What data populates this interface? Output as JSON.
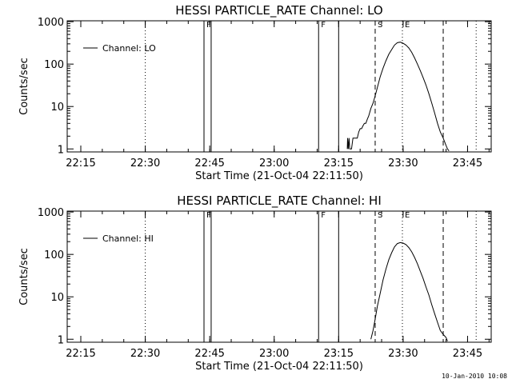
{
  "chart_data": [
    {
      "type": "line",
      "title": "HESSI PARTICLE_RATE Channel: LO",
      "xlabel": "Start Time (21-Oct-04 22:11:50)",
      "ylabel": "Counts/sec",
      "y_scale": "log",
      "ylim": [
        0.85,
        1050
      ],
      "xlim": [
        "22:11:50",
        "23:50:30"
      ],
      "x_ticks": [
        "22:15",
        "22:30",
        "22:45",
        "23:00",
        "23:15",
        "23:30",
        "23:45"
      ],
      "y_ticks": [
        "1",
        "10",
        "100",
        "1000"
      ],
      "legend": {
        "placement": "top-left",
        "entries": [
          "Channel: LO"
        ]
      },
      "grid": false,
      "markers": {
        "solid": [
          {
            "time": "22:43:40",
            "label": "F"
          },
          {
            "time": "22:45:20",
            "label": ""
          },
          {
            "time": "23:10:20",
            "label": "F"
          },
          {
            "time": "23:15:00",
            "label": ""
          }
        ],
        "dashed": [
          {
            "time": "23:23:30",
            "label": "S"
          },
          {
            "time": "23:39:20",
            "label": ""
          }
        ],
        "dotted": [
          {
            "time": "22:30:00",
            "label": ""
          },
          {
            "time": "23:29:50",
            "label": "E"
          },
          {
            "time": "23:47:00",
            "label": ""
          }
        ]
      },
      "series": [
        {
          "name": "Channel: LO",
          "x": [
            "23:17:00",
            "23:17:05",
            "23:17:15",
            "23:17:25",
            "23:17:35",
            "23:18:00",
            "23:18:20",
            "23:18:40",
            "23:19:00",
            "23:19:20",
            "23:19:40",
            "23:20:00",
            "23:20:20",
            "23:20:40",
            "23:21:00",
            "23:21:20",
            "23:21:40",
            "23:22:00",
            "23:22:30",
            "23:23:00",
            "23:23:30",
            "23:24:00",
            "23:24:40",
            "23:25:20",
            "23:26:00",
            "23:26:40",
            "23:27:20",
            "23:28:00",
            "23:28:40",
            "23:29:20",
            "23:30:00",
            "23:30:40",
            "23:31:20",
            "23:32:00",
            "23:32:40",
            "23:33:20",
            "23:34:00",
            "23:34:40",
            "23:35:20",
            "23:36:00",
            "23:36:40",
            "23:37:20",
            "23:38:00",
            "23:38:40",
            "23:39:20",
            "23:40:00",
            "23:40:20",
            "23:40:40"
          ],
          "y": [
            1,
            1.8,
            1,
            1.8,
            1,
            1,
            1.8,
            1.8,
            1.8,
            1.8,
            2.5,
            3,
            3,
            3.5,
            4,
            4,
            5,
            6,
            9,
            12,
            18,
            28,
            50,
            80,
            120,
            170,
            220,
            280,
            320,
            330,
            310,
            280,
            240,
            190,
            140,
            100,
            70,
            48,
            32,
            20,
            12,
            7,
            4,
            2.5,
            1.8,
            1.2,
            1,
            0.9
          ]
        }
      ]
    },
    {
      "type": "line",
      "title": "HESSI PARTICLE_RATE Channel: HI",
      "xlabel": "Start Time (21-Oct-04 22:11:50)",
      "ylabel": "Counts/sec",
      "y_scale": "log",
      "ylim": [
        0.85,
        1050
      ],
      "xlim": [
        "22:11:50",
        "23:50:30"
      ],
      "x_ticks": [
        "22:15",
        "22:30",
        "22:45",
        "23:00",
        "23:15",
        "23:30",
        "23:45"
      ],
      "y_ticks": [
        "1",
        "10",
        "100",
        "1000"
      ],
      "legend": {
        "placement": "top-left",
        "entries": [
          "Channel: HI"
        ]
      },
      "grid": false,
      "markers": {
        "solid": [
          {
            "time": "22:43:40",
            "label": "F"
          },
          {
            "time": "22:45:20",
            "label": ""
          },
          {
            "time": "23:10:20",
            "label": "F"
          },
          {
            "time": "23:15:00",
            "label": ""
          }
        ],
        "dashed": [
          {
            "time": "23:23:30",
            "label": "S"
          },
          {
            "time": "23:39:20",
            "label": ""
          }
        ],
        "dotted": [
          {
            "time": "22:30:00",
            "label": ""
          },
          {
            "time": "23:29:50",
            "label": "E"
          },
          {
            "time": "23:47:00",
            "label": ""
          }
        ]
      },
      "series": [
        {
          "name": "Channel: HI",
          "x": [
            "23:22:30",
            "23:23:00",
            "23:23:30",
            "23:24:00",
            "23:24:40",
            "23:25:20",
            "23:26:00",
            "23:26:40",
            "23:27:20",
            "23:28:00",
            "23:28:40",
            "23:29:20",
            "23:30:00",
            "23:30:40",
            "23:31:20",
            "23:32:00",
            "23:32:40",
            "23:33:20",
            "23:34:00",
            "23:34:40",
            "23:35:20",
            "23:36:00",
            "23:36:40",
            "23:37:20",
            "23:38:00",
            "23:38:40",
            "23:39:20",
            "23:40:00",
            "23:40:20"
          ],
          "y": [
            1,
            1.6,
            3,
            6,
            12,
            25,
            45,
            75,
            110,
            150,
            180,
            190,
            185,
            170,
            145,
            115,
            85,
            60,
            40,
            27,
            17,
            11,
            6.5,
            4,
            2.5,
            1.6,
            1.3,
            1.1,
            0.9
          ]
        }
      ]
    }
  ],
  "footer": {
    "date_stamp": "10-Jan-2010 10:08"
  }
}
